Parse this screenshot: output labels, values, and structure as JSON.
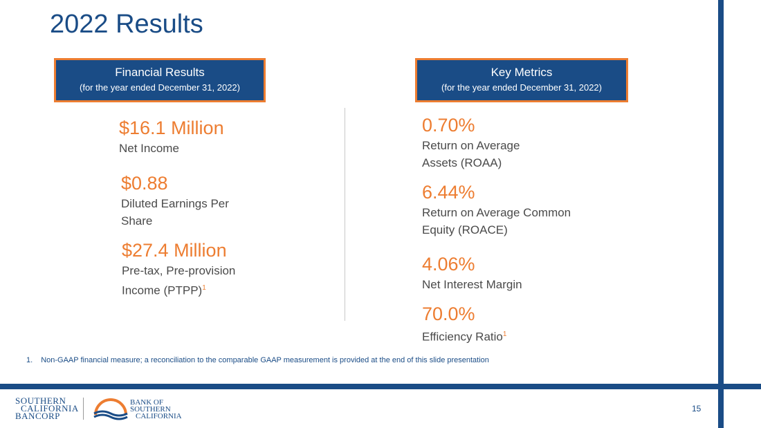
{
  "slide": {
    "title": "2022 Results",
    "page_number": "15"
  },
  "left_panel": {
    "header_title": "Financial Results",
    "header_subtitle": "(for the year ended December 31, 2022)",
    "metrics": [
      {
        "value": "$16.1 Million",
        "label": "Net Income"
      },
      {
        "value": "$0.88",
        "label_line1": "Diluted Earnings Per",
        "label_line2": "Share"
      },
      {
        "value": "$27.4 Million",
        "label_line1": "Pre-tax, Pre-provision",
        "label_line2": "Income (PTPP)",
        "footnote_ref": "1"
      }
    ]
  },
  "right_panel": {
    "header_title": "Key Metrics",
    "header_subtitle": "(for the year ended December 31, 2022)",
    "metrics": [
      {
        "value": "0.70%",
        "label_line1": "Return on Average",
        "label_line2": "Assets (ROAA)"
      },
      {
        "value": "6.44%",
        "label_line1": "Return on Average Common",
        "label_line2": "Equity (ROACE)"
      },
      {
        "value": "4.06%",
        "label": "Net Interest Margin"
      },
      {
        "value": "70.0%",
        "label": "Efficiency Ratio",
        "footnote_ref": "1"
      }
    ]
  },
  "footnote": {
    "number": "1.",
    "text": "Non-GAAP financial measure; a reconciliation to the comparable GAAP measurement is provided at the end of this slide presentation"
  },
  "logos": {
    "company": {
      "line1": "Southern",
      "line2": "California",
      "line3": "Bancorp"
    },
    "bank": {
      "line1": "Bank of",
      "line2": "Southern",
      "line3": "California"
    }
  },
  "colors": {
    "brand_blue": "#1a4c86",
    "accent_orange": "#ed7d31"
  }
}
